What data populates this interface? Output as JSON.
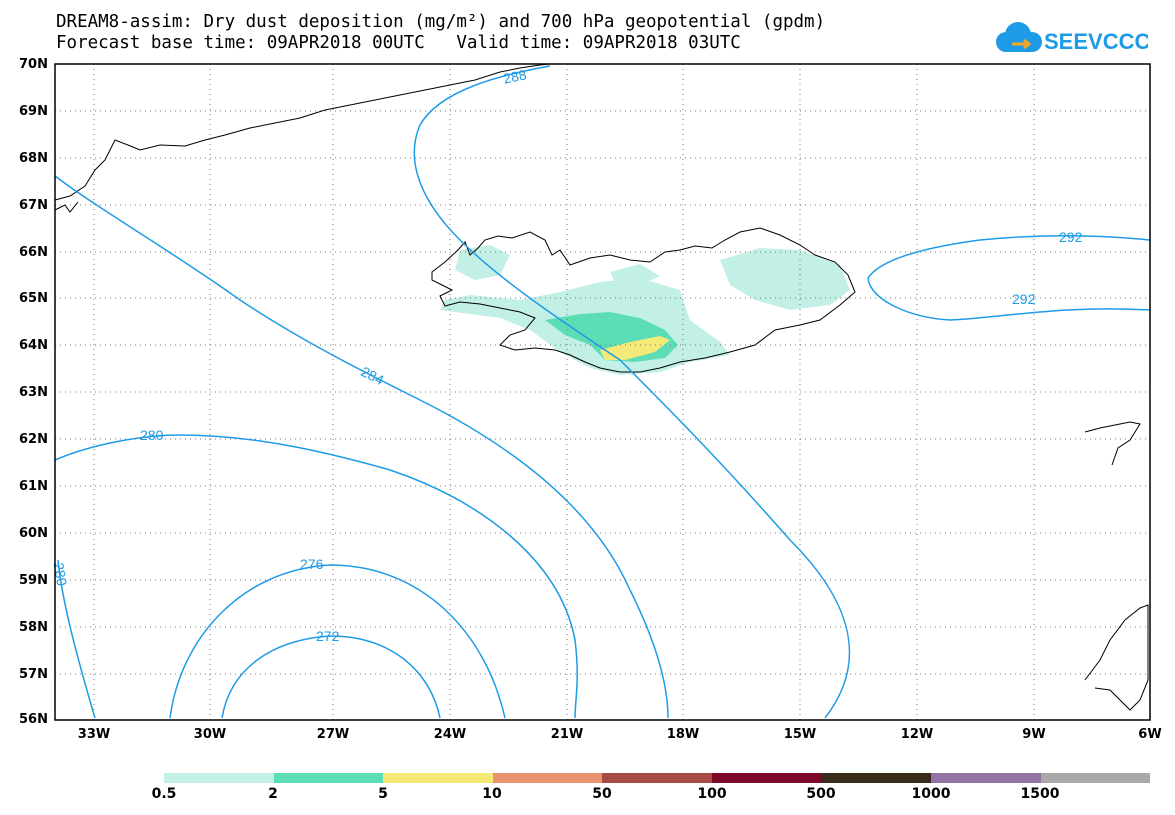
{
  "title": {
    "line1": "DREAM8-assim: Dry dust deposition (mg/m²) and 700 hPa geopotential (gpdm)",
    "line2": "Forecast base time: 09APR2018 00UTC   Valid time: 09APR2018 03UTC"
  },
  "logo": {
    "text": "SEEVCCC"
  },
  "axes": {
    "lat_labels": [
      "70N",
      "69N",
      "68N",
      "67N",
      "66N",
      "65N",
      "64N",
      "63N",
      "62N",
      "61N",
      "60N",
      "59N",
      "58N",
      "57N",
      "56N"
    ],
    "lon_labels": [
      "33W",
      "30W",
      "27W",
      "24W",
      "21W",
      "18W",
      "15W",
      "12W",
      "9W",
      "6W"
    ],
    "lat_range": [
      56,
      70
    ],
    "lon_range": [
      -34.5,
      -6
    ],
    "grid": "dotted"
  },
  "contours": {
    "variable": "700 hPa geopotential",
    "color": "#1E9BE6",
    "labels": [
      {
        "value": "288"
      },
      {
        "value": "292"
      },
      {
        "value": "292"
      },
      {
        "value": "284"
      },
      {
        "value": "280"
      },
      {
        "value": "280"
      },
      {
        "value": "276"
      },
      {
        "value": "272"
      }
    ]
  },
  "colorbar": {
    "labels": [
      "0.5",
      "2",
      "5",
      "10",
      "50",
      "100",
      "500",
      "1000",
      "1500"
    ],
    "colors": [
      "#C3F0E6",
      "#5DDDB5",
      "#F5E978",
      "#E8946E",
      "#A84A45",
      "#7D0A2A",
      "#3A2A1C",
      "#9173A6",
      "#A9A9A9"
    ]
  }
}
